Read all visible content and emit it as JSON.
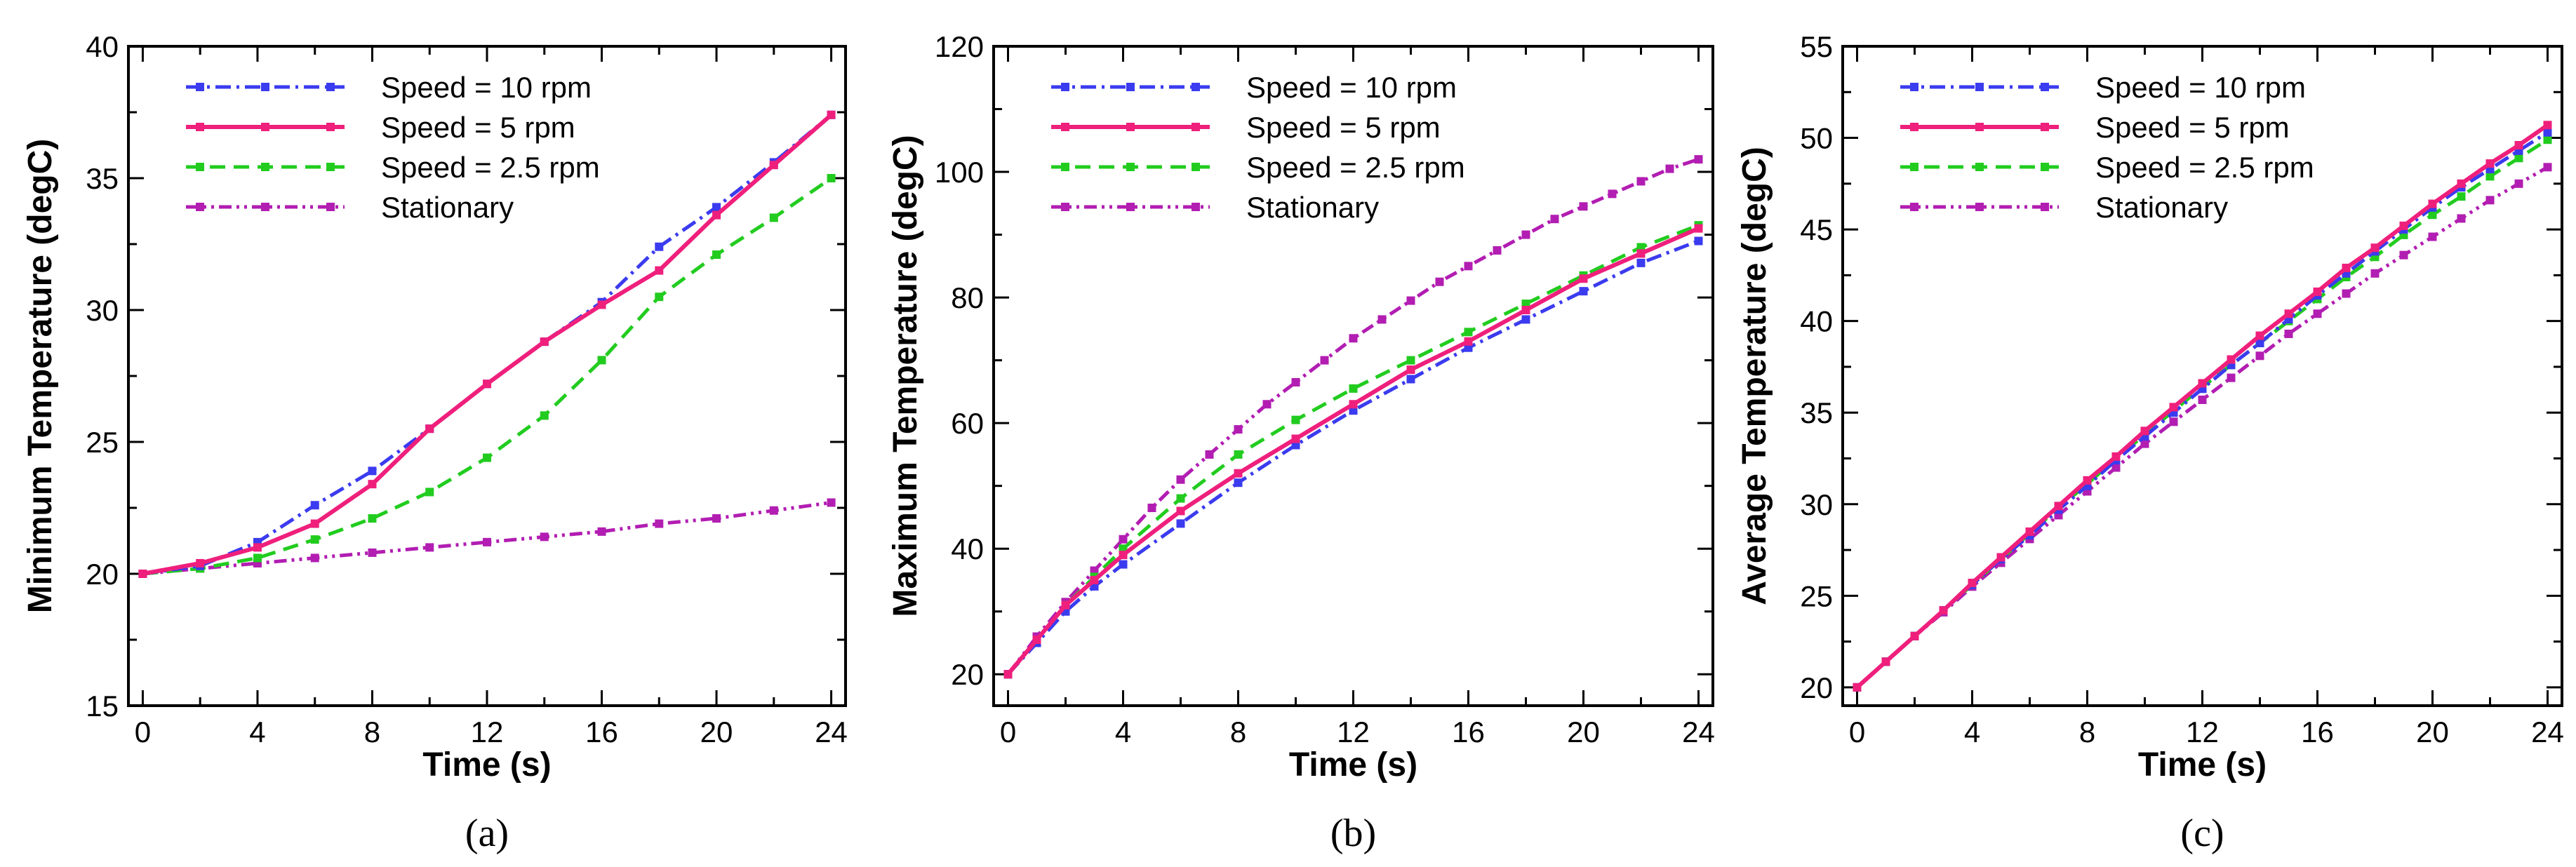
{
  "chart_data": [
    {
      "type": "line",
      "panel_label": "(a)",
      "xlabel": "Time (s)",
      "ylabel": "Minimum Temperature (degC)",
      "xlim": [
        -0.5,
        24.5
      ],
      "ylim": [
        15,
        40
      ],
      "xticks": [
        0,
        4,
        8,
        12,
        16,
        20,
        24
      ],
      "yticks": [
        15,
        20,
        25,
        30,
        35,
        40
      ],
      "xtick_labels": [
        "0",
        "4",
        "8",
        "12",
        "16",
        "20",
        "24"
      ],
      "ytick_labels": [
        "15",
        "20",
        "25",
        "30",
        "35",
        "40"
      ],
      "legend_position": "top-left",
      "series": [
        {
          "name": "Speed = 10 rpm",
          "color": "#3b3bef",
          "style": "dashdot",
          "x": [
            0,
            2,
            4,
            6,
            8,
            10,
            12,
            14,
            16,
            18,
            20,
            22,
            24
          ],
          "y": [
            20,
            20.3,
            21.2,
            22.6,
            23.9,
            25.5,
            27.2,
            28.8,
            30.3,
            32.4,
            33.9,
            35.6,
            37.4
          ]
        },
        {
          "name": "Speed = 5 rpm",
          "color": "#ef1f7c",
          "style": "solid",
          "x": [
            0,
            2,
            4,
            6,
            8,
            10,
            12,
            14,
            16,
            18,
            20,
            22,
            24
          ],
          "y": [
            20,
            20.4,
            21.0,
            21.9,
            23.4,
            25.5,
            27.2,
            28.8,
            30.2,
            31.5,
            33.6,
            35.5,
            37.4
          ]
        },
        {
          "name": "Speed = 2.5 rpm",
          "color": "#22cc1f",
          "style": "dashed",
          "x": [
            0,
            2,
            4,
            6,
            8,
            10,
            12,
            14,
            16,
            18,
            20,
            22,
            24
          ],
          "y": [
            20,
            20.2,
            20.6,
            21.3,
            22.1,
            23.1,
            24.4,
            26.0,
            28.1,
            30.5,
            32.1,
            33.5,
            35.0
          ]
        },
        {
          "name": "Stationary",
          "color": "#b21db2",
          "style": "dashdotdot",
          "x": [
            0,
            2,
            4,
            6,
            8,
            10,
            12,
            14,
            16,
            18,
            20,
            22,
            24
          ],
          "y": [
            20,
            20.2,
            20.4,
            20.6,
            20.8,
            21.0,
            21.2,
            21.4,
            21.6,
            21.9,
            22.1,
            22.4,
            22.7
          ]
        }
      ]
    },
    {
      "type": "line",
      "panel_label": "(b)",
      "xlabel": "Time (s)",
      "ylabel": "Maximum Temperature (degC)",
      "xlim": [
        -0.5,
        24.5
      ],
      "ylim": [
        15,
        120
      ],
      "xticks": [
        0,
        4,
        8,
        12,
        16,
        20,
        24
      ],
      "yticks": [
        20,
        40,
        60,
        80,
        100,
        120
      ],
      "xtick_labels": [
        "0",
        "4",
        "8",
        "12",
        "16",
        "20",
        "24"
      ],
      "ytick_labels": [
        "20",
        "40",
        "60",
        "80",
        "100",
        "120"
      ],
      "legend_position": "top-left",
      "series": [
        {
          "name": "Speed = 10 rpm",
          "color": "#3b3bef",
          "style": "dashdot",
          "x": [
            0,
            1,
            2,
            3,
            4,
            6,
            8,
            10,
            12,
            14,
            16,
            18,
            20,
            22,
            24
          ],
          "y": [
            20,
            25,
            30,
            34,
            37.5,
            44,
            50.5,
            56.5,
            62,
            67,
            72,
            76.5,
            81,
            85.5,
            89
          ]
        },
        {
          "name": "Speed = 5 rpm",
          "color": "#ef1f7c",
          "style": "solid",
          "x": [
            0,
            1,
            2,
            3,
            4,
            6,
            8,
            10,
            12,
            14,
            16,
            18,
            20,
            22,
            24
          ],
          "y": [
            20,
            25.5,
            31,
            35,
            39,
            46,
            52,
            57.5,
            63,
            68.5,
            73,
            78,
            83,
            87,
            91
          ]
        },
        {
          "name": "Speed = 2.5 rpm",
          "color": "#22cc1f",
          "style": "dashed",
          "x": [
            0,
            1,
            2,
            3,
            4,
            6,
            8,
            10,
            12,
            14,
            16,
            18,
            20,
            22,
            24
          ],
          "y": [
            20,
            25.5,
            31,
            35.5,
            40,
            48,
            55,
            60.5,
            65.5,
            70,
            74.5,
            79,
            83.5,
            88,
            91.5
          ]
        },
        {
          "name": "Stationary",
          "color": "#b21db2",
          "style": "dashdotdot",
          "x": [
            0,
            1,
            2,
            3,
            4,
            5,
            6,
            7,
            8,
            9,
            10,
            11,
            12,
            13,
            14,
            15,
            16,
            17,
            18,
            19,
            20,
            21,
            22,
            23,
            24
          ],
          "y": [
            20,
            26,
            31.5,
            36.5,
            41.5,
            46.5,
            51,
            55,
            59,
            63,
            66.5,
            70,
            73.5,
            76.5,
            79.5,
            82.5,
            85,
            87.5,
            90,
            92.5,
            94.5,
            96.5,
            98.5,
            100.5,
            102
          ]
        }
      ]
    },
    {
      "type": "line",
      "panel_label": "(c)",
      "xlabel": "Time (s)",
      "ylabel": "Average Temperature (degC)",
      "xlim": [
        -0.5,
        24.5
      ],
      "ylim": [
        19,
        55
      ],
      "xticks": [
        0,
        4,
        8,
        12,
        16,
        20,
        24
      ],
      "yticks": [
        20,
        25,
        30,
        35,
        40,
        45,
        50,
        55
      ],
      "xtick_labels": [
        "0",
        "4",
        "8",
        "12",
        "16",
        "20",
        "24"
      ],
      "ytick_labels": [
        "20",
        "25",
        "30",
        "35",
        "40",
        "45",
        "50",
        "55"
      ],
      "legend_position": "top-left",
      "series": [
        {
          "name": "Speed = 10 rpm",
          "color": "#3b3bef",
          "style": "dashdot",
          "x": [
            0,
            1,
            2,
            3,
            4,
            5,
            6,
            7,
            8,
            9,
            10,
            11,
            12,
            13,
            14,
            15,
            16,
            17,
            18,
            19,
            20,
            21,
            22,
            23,
            24
          ],
          "y": [
            20,
            21.4,
            22.8,
            24.2,
            25.6,
            27.0,
            28.3,
            29.7,
            31.0,
            32.4,
            33.7,
            35.0,
            36.3,
            37.6,
            38.8,
            40.1,
            41.4,
            42.6,
            43.8,
            45.0,
            46.2,
            47.3,
            48.3,
            49.3,
            50.3
          ]
        },
        {
          "name": "Speed = 5 rpm",
          "color": "#ef1f7c",
          "style": "solid",
          "x": [
            0,
            1,
            2,
            3,
            4,
            5,
            6,
            7,
            8,
            9,
            10,
            11,
            12,
            13,
            14,
            15,
            16,
            17,
            18,
            19,
            20,
            21,
            22,
            23,
            24
          ],
          "y": [
            20,
            21.4,
            22.8,
            24.2,
            25.7,
            27.1,
            28.5,
            29.9,
            31.3,
            32.6,
            34.0,
            35.3,
            36.6,
            37.9,
            39.2,
            40.4,
            41.6,
            42.9,
            44.0,
            45.2,
            46.4,
            47.5,
            48.6,
            49.6,
            50.7
          ]
        },
        {
          "name": "Speed = 2.5 rpm",
          "color": "#22cc1f",
          "style": "dashed",
          "x": [
            0,
            1,
            2,
            3,
            4,
            5,
            6,
            7,
            8,
            9,
            10,
            11,
            12,
            13,
            14,
            15,
            16,
            17,
            18,
            19,
            20,
            21,
            22,
            23,
            24
          ],
          "y": [
            20,
            21.4,
            22.8,
            24.2,
            25.6,
            27.0,
            28.4,
            29.8,
            31.1,
            32.5,
            33.8,
            35.1,
            36.4,
            37.6,
            38.8,
            40.0,
            41.2,
            42.4,
            43.5,
            44.7,
            45.8,
            46.8,
            47.9,
            48.9,
            49.9
          ]
        },
        {
          "name": "Stationary",
          "color": "#b21db2",
          "style": "dashdotdot",
          "x": [
            0,
            1,
            2,
            3,
            4,
            5,
            6,
            7,
            8,
            9,
            10,
            11,
            12,
            13,
            14,
            15,
            16,
            17,
            18,
            19,
            20,
            21,
            22,
            23,
            24
          ],
          "y": [
            20,
            21.4,
            22.8,
            24.1,
            25.5,
            26.8,
            28.1,
            29.4,
            30.7,
            32.0,
            33.3,
            34.5,
            35.7,
            36.9,
            38.1,
            39.3,
            40.4,
            41.5,
            42.6,
            43.6,
            44.6,
            45.6,
            46.6,
            47.5,
            48.4
          ]
        }
      ]
    }
  ]
}
